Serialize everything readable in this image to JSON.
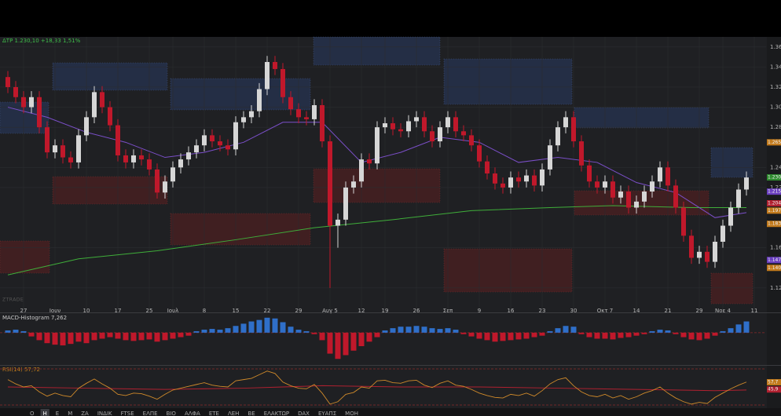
{
  "chart_data": [
    {
      "type": "candlestick",
      "title": "ΔΤΡ 1.230,10 +18,33 1,51%",
      "up_color": "#d6d6d6",
      "down_color": "#c0182b",
      "grid": true,
      "xlim": [
        -1,
        96.5
      ],
      "ylim": [
        1.098,
        1.37
      ],
      "yticks": [
        1.36,
        1.34,
        1.32,
        {
          "value": 1.3,
          "label": "1.30"
        },
        1.28,
        1.24,
        1.22,
        1.16,
        1.12
      ],
      "xticks": [
        {
          "value": 2,
          "label": "27"
        },
        {
          "value": 6,
          "label": "Ιουν"
        },
        {
          "value": 10,
          "label": "10"
        },
        {
          "value": 14,
          "label": "17"
        },
        {
          "value": 18,
          "label": "25"
        },
        {
          "value": 21,
          "label": "Ιουλ"
        },
        {
          "value": 25,
          "label": "8"
        },
        {
          "value": 29,
          "label": "15"
        },
        {
          "value": 33,
          "label": "22"
        },
        {
          "value": 37,
          "label": "29"
        },
        {
          "value": 41,
          "label": "Αυγ 5"
        },
        {
          "value": 45,
          "label": "12"
        },
        {
          "value": 48,
          "label": "19"
        },
        {
          "value": 52,
          "label": "26"
        },
        {
          "value": 56,
          "label": "Σεπ"
        },
        {
          "value": 60,
          "label": "9"
        },
        {
          "value": 64,
          "label": "16"
        },
        {
          "value": 68,
          "label": "23"
        },
        {
          "value": 72,
          "label": "30"
        },
        {
          "value": 76,
          "label": "Οκτ 7"
        },
        {
          "value": 80,
          "label": "14"
        },
        {
          "value": 84,
          "label": "21"
        },
        {
          "value": 88,
          "label": "29"
        },
        {
          "value": 91,
          "label": "Νοε 4"
        },
        {
          "value": 95,
          "label": "11"
        }
      ],
      "open": [
        1.33,
        1.32,
        1.31,
        1.3,
        1.31,
        1.28,
        1.255,
        1.262,
        1.25,
        1.245,
        1.272,
        1.29,
        1.315,
        1.3,
        1.282,
        1.252,
        1.245,
        1.252,
        1.248,
        1.238,
        1.215,
        1.226,
        1.24,
        1.248,
        1.255,
        1.262,
        1.272,
        1.266,
        1.262,
        1.258,
        1.285,
        1.29,
        1.296,
        1.318,
        1.345,
        1.338,
        1.31,
        1.298,
        1.29,
        1.288,
        1.302,
        1.266,
        1.182,
        1.188,
        1.22,
        1.226,
        1.248,
        1.244,
        1.28,
        1.284,
        1.278,
        1.276,
        1.286,
        1.29,
        1.276,
        1.266,
        1.28,
        1.29,
        1.276,
        1.272,
        1.262,
        1.246,
        1.234,
        1.224,
        1.22,
        1.23,
        1.226,
        1.232,
        1.222,
        1.238,
        1.262,
        1.28,
        1.29,
        1.266,
        1.242,
        1.226,
        1.22,
        1.226,
        1.21,
        1.216,
        1.2,
        1.206,
        1.216,
        1.226,
        1.24,
        1.222,
        1.2,
        1.172,
        1.15,
        1.156,
        1.146,
        1.166,
        1.182,
        1.2,
        1.218
      ],
      "high": [
        1.336,
        1.326,
        1.316,
        1.316,
        1.316,
        1.286,
        1.268,
        1.268,
        1.256,
        1.278,
        1.296,
        1.321,
        1.321,
        1.306,
        1.288,
        1.258,
        1.258,
        1.258,
        1.254,
        1.244,
        1.232,
        1.246,
        1.254,
        1.261,
        1.268,
        1.278,
        1.278,
        1.272,
        1.268,
        1.291,
        1.296,
        1.302,
        1.324,
        1.351,
        1.351,
        1.344,
        1.316,
        1.304,
        1.296,
        1.308,
        1.308,
        1.272,
        1.194,
        1.226,
        1.232,
        1.254,
        1.254,
        1.286,
        1.29,
        1.29,
        1.284,
        1.292,
        1.296,
        1.296,
        1.282,
        1.286,
        1.296,
        1.296,
        1.282,
        1.278,
        1.268,
        1.252,
        1.24,
        1.23,
        1.236,
        1.236,
        1.238,
        1.238,
        1.244,
        1.268,
        1.286,
        1.296,
        1.296,
        1.272,
        1.248,
        1.232,
        1.232,
        1.232,
        1.222,
        1.222,
        1.212,
        1.222,
        1.232,
        1.246,
        1.246,
        1.228,
        1.206,
        1.178,
        1.162,
        1.162,
        1.172,
        1.188,
        1.206,
        1.224,
        1.236
      ],
      "low": [
        1.314,
        1.304,
        1.294,
        1.294,
        1.274,
        1.249,
        1.249,
        1.244,
        1.239,
        1.239,
        1.266,
        1.284,
        1.294,
        1.276,
        1.246,
        1.239,
        1.239,
        1.242,
        1.232,
        1.209,
        1.209,
        1.22,
        1.234,
        1.242,
        1.249,
        1.256,
        1.26,
        1.256,
        1.252,
        1.252,
        1.279,
        1.284,
        1.29,
        1.312,
        1.332,
        1.304,
        1.292,
        1.284,
        1.282,
        1.282,
        1.26,
        1.12,
        1.16,
        1.182,
        1.214,
        1.22,
        1.238,
        1.238,
        1.274,
        1.272,
        1.27,
        1.27,
        1.28,
        1.27,
        1.26,
        1.26,
        1.274,
        1.27,
        1.266,
        1.256,
        1.24,
        1.228,
        1.218,
        1.214,
        1.214,
        1.22,
        1.22,
        1.216,
        1.216,
        1.232,
        1.256,
        1.274,
        1.26,
        1.236,
        1.22,
        1.214,
        1.214,
        1.204,
        1.204,
        1.194,
        1.194,
        1.2,
        1.21,
        1.22,
        1.216,
        1.194,
        1.166,
        1.144,
        1.144,
        1.14,
        1.14,
        1.16,
        1.176,
        1.194,
        1.212
      ],
      "close": [
        1.32,
        1.31,
        1.3,
        1.31,
        1.28,
        1.255,
        1.262,
        1.25,
        1.245,
        1.272,
        1.29,
        1.315,
        1.3,
        1.282,
        1.252,
        1.245,
        1.252,
        1.248,
        1.238,
        1.215,
        1.226,
        1.24,
        1.248,
        1.255,
        1.262,
        1.272,
        1.266,
        1.262,
        1.258,
        1.285,
        1.29,
        1.296,
        1.318,
        1.345,
        1.338,
        1.31,
        1.298,
        1.29,
        1.288,
        1.302,
        1.266,
        1.182,
        1.188,
        1.22,
        1.226,
        1.248,
        1.244,
        1.28,
        1.284,
        1.278,
        1.276,
        1.286,
        1.29,
        1.276,
        1.266,
        1.28,
        1.29,
        1.276,
        1.272,
        1.262,
        1.246,
        1.234,
        1.224,
        1.22,
        1.23,
        1.226,
        1.232,
        1.222,
        1.238,
        1.262,
        1.28,
        1.29,
        1.266,
        1.242,
        1.226,
        1.22,
        1.226,
        1.21,
        1.216,
        1.2,
        1.206,
        1.216,
        1.226,
        1.24,
        1.222,
        1.2,
        1.172,
        1.15,
        1.156,
        1.146,
        1.166,
        1.182,
        1.2,
        1.218,
        1.23
      ],
      "overlays": [
        {
          "color": "#3fae3a",
          "x": [
            0,
            9,
            19,
            29,
            39,
            49,
            59,
            69,
            77,
            87,
            94
          ],
          "values": [
            1.133,
            1.149,
            1.157,
            1.168,
            1.18,
            1.188,
            1.197,
            1.2,
            1.202,
            1.2,
            1.2
          ]
        },
        {
          "color": "#7b4fc9",
          "x": [
            0,
            5,
            10,
            15,
            20,
            25,
            30,
            35,
            40,
            45,
            50,
            55,
            60,
            65,
            70,
            75,
            80,
            85,
            90,
            94
          ],
          "values": [
            1.3,
            1.29,
            1.275,
            1.265,
            1.25,
            1.255,
            1.265,
            1.285,
            1.285,
            1.245,
            1.255,
            1.27,
            1.265,
            1.245,
            1.25,
            1.245,
            1.225,
            1.215,
            1.19,
            1.195
          ]
        }
      ],
      "price_labels": [
        {
          "value": 1.265,
          "label": "1.265",
          "color": "#c27a1c"
        },
        {
          "value": 1.2301,
          "label": "1.230,1",
          "color": "#2e8b2e"
        },
        {
          "value": 1.2159,
          "label": "1.215,9",
          "color": "#6a3fc0"
        },
        {
          "value": 1.2043,
          "label": "1.204,3",
          "color": "#b02030"
        },
        {
          "value": 1.197,
          "label": "1.197,0",
          "color": "#c27a1c"
        },
        {
          "value": 1.1838,
          "label": "1.183,8",
          "color": "#c27a1c"
        },
        {
          "value": 1.1478,
          "label": "1.147,8",
          "color": "#6a3fc0"
        },
        {
          "value": 1.14,
          "label": "1.140",
          "color": "#c27a1c"
        }
      ]
    },
    {
      "type": "bar",
      "title": "MACD-Histogram 7,262",
      "up_color": "#2f6fc9",
      "down_color": "#c0182b",
      "xlim": [
        -1,
        96.5
      ],
      "ylim": [
        -40,
        25
      ],
      "values": [
        3,
        4,
        2,
        -5,
        -10,
        -14,
        -16,
        -17,
        -15,
        -12,
        -14,
        -10,
        -8,
        -6,
        -8,
        -10,
        -11,
        -10,
        -9,
        -12,
        -10,
        -8,
        -6,
        -4,
        2,
        4,
        5,
        4,
        6,
        9,
        12,
        15,
        17,
        20,
        19,
        14,
        8,
        4,
        2,
        -2,
        -10,
        -28,
        -35,
        -30,
        -24,
        -18,
        -12,
        -6,
        3,
        6,
        8,
        8,
        9,
        8,
        6,
        5,
        6,
        4,
        -2,
        -5,
        -8,
        -10,
        -12,
        -11,
        -10,
        -9,
        -8,
        -6,
        -4,
        2,
        6,
        9,
        8,
        -2,
        -6,
        -8,
        -8,
        -9,
        -7,
        -6,
        -4,
        -2,
        2,
        4,
        3,
        -2,
        -6,
        -9,
        -10,
        -8,
        -4,
        2,
        6,
        11,
        15
      ]
    },
    {
      "type": "line",
      "title": "RSI(14) 57,72",
      "color": "#d08a2a",
      "xlim": [
        -1,
        96.5
      ],
      "ylim": [
        18,
        82
      ],
      "values": [
        62,
        55,
        50,
        52,
        42,
        35,
        40,
        36,
        34,
        48,
        56,
        63,
        55,
        48,
        38,
        36,
        40,
        39,
        35,
        30,
        38,
        45,
        48,
        51,
        54,
        57,
        53,
        51,
        50,
        60,
        62,
        64,
        70,
        76,
        72,
        58,
        52,
        48,
        47,
        54,
        40,
        22,
        26,
        38,
        41,
        50,
        48,
        60,
        61,
        57,
        56,
        60,
        61,
        53,
        49,
        56,
        60,
        53,
        51,
        46,
        40,
        36,
        33,
        32,
        38,
        36,
        40,
        35,
        44,
        55,
        62,
        65,
        52,
        42,
        36,
        34,
        38,
        32,
        36,
        30,
        34,
        40,
        44,
        50,
        40,
        32,
        26,
        22,
        25,
        23,
        33,
        40,
        47,
        53,
        58
      ],
      "overlays": [
        {
          "color": "#b02030",
          "x": [
            0,
            10,
            20,
            30,
            40,
            50,
            60,
            70,
            80,
            90,
            94
          ],
          "values": [
            50,
            48,
            46,
            48,
            52,
            50,
            50,
            48,
            46,
            44,
            45
          ]
        }
      ],
      "price_labels": [
        {
          "value": 57.7,
          "label": "57,7",
          "color": "#c27a1c"
        },
        {
          "value": 45.9,
          "label": "45,9",
          "color": "#b02030"
        }
      ]
    }
  ],
  "watermark": "ZTRADE",
  "toolbar": [
    "Ο",
    "Η",
    "Ε",
    "Μ",
    "ΖΑ",
    "ΙΝΔΙΚ",
    "FTSE",
    "ΕΛΠΕ",
    "ΒΙΟ",
    "ΑΛΦΑ",
    "ΕΤΕ",
    "ΛΕΗ",
    "ΒΕ",
    "ΕΛΑΚΤΩΡ",
    "DAX",
    "ΕΥΑΠΣ",
    "ΜΟΗ"
  ]
}
